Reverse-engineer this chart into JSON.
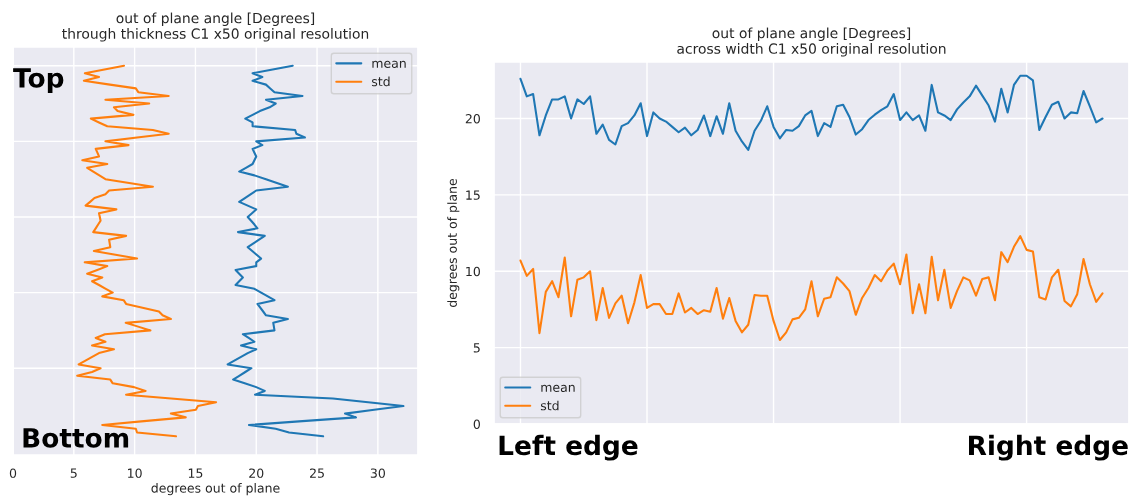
{
  "chart_data": [
    {
      "type": "line",
      "orientation": "horizontal",
      "title": "out of plane angle [Degrees]\nthrough thickness C1 x50 original resolution",
      "xlabel": "degrees out of plane",
      "categories": [
        null,
        null,
        null,
        null,
        null,
        null,
        null,
        null,
        null,
        null,
        null,
        null,
        null,
        null,
        null,
        null,
        null,
        null,
        null,
        null,
        null,
        null,
        null,
        null,
        null,
        null,
        null,
        null,
        null,
        null,
        null,
        null,
        null,
        null,
        null,
        null,
        null,
        null,
        null,
        null,
        null,
        null,
        null,
        null,
        null,
        null,
        null,
        null,
        null,
        null,
        null,
        null,
        null,
        null,
        null,
        null,
        null,
        null,
        null,
        null,
        null,
        null,
        null,
        null,
        null,
        null,
        null,
        null,
        null,
        null,
        null,
        null,
        null,
        null,
        null,
        null,
        null,
        null,
        null,
        null,
        null,
        null,
        null,
        null,
        null,
        null,
        null,
        null,
        null,
        null,
        null,
        null,
        null,
        null,
        null,
        null,
        null,
        null,
        null
      ],
      "xlim": [
        0,
        33.3
      ],
      "xticks": [
        0,
        5,
        10,
        15,
        20,
        25,
        30
      ],
      "tick_labels": "x",
      "grid": true,
      "legend": "top right",
      "annotations": [
        "Top",
        "Bottom"
      ],
      "series": [
        {
          "name": "mean",
          "color": "#1f77b4",
          "values": [
            23.0,
            21.35,
            19.7,
            20.5,
            19.7,
            20.8,
            21.15,
            21.5,
            23.8,
            20.8,
            21.6,
            21.1,
            20.3,
            19.7,
            19.1,
            19.7,
            19.7,
            23.2,
            23.3,
            24.0,
            20.0,
            20.5,
            19.7,
            19.85,
            20.0,
            19.85,
            19.7,
            19.15,
            18.6,
            19.85,
            20.8,
            21.7,
            22.6,
            20.0,
            19.53,
            19.07,
            18.6,
            19.3,
            20.0,
            19.65,
            19.3,
            19.58,
            19.85,
            20.1,
            18.5,
            20.7,
            20.23,
            19.77,
            19.3,
            19.67,
            20.03,
            20.4,
            20.0,
            20.0,
            18.3,
            18.6,
            18.9,
            18.6,
            18.3,
            19.85,
            20.4,
            20.95,
            21.5,
            20.1,
            20.33,
            20.57,
            20.8,
            22.6,
            21.4,
            21.45,
            21.5,
            18.9,
            19.38,
            19.85,
            18.75,
            20.0,
            19.3,
            18.75,
            18.2,
            17.65,
            19.6,
            19.1,
            18.6,
            18.1,
            19.05,
            20.0,
            20.7,
            19.9,
            26.3,
            29.2,
            32.1,
            29.7,
            27.3,
            28.2,
            23.8,
            19.4,
            21.6,
            22.7,
            25.5
          ]
        },
        {
          "name": "std",
          "color": "#ff7f0e",
          "values": [
            9.13,
            7.52,
            5.91,
            7.07,
            5.83,
            7.97,
            10.1,
            10.3,
            12.8,
            7.6,
            11.2,
            8.3,
            8.6,
            9.9,
            6.4,
            7.07,
            7.75,
            11.5,
            12.8,
            10.2,
            7.6,
            9.5,
            6.8,
            6.94,
            7.07,
            5.7,
            7.75,
            6.1,
            6.6,
            7.1,
            7.6,
            9.55,
            11.5,
            7.9,
            7.6,
            6.7,
            6.34,
            5.97,
            8.5,
            7.07,
            7.14,
            7.2,
            7.0,
            6.8,
            6.6,
            9.3,
            7.9,
            7.95,
            8.0,
            6.65,
            8.43,
            10.2,
            5.9,
            7.75,
            6.93,
            6.1,
            7.34,
            6.5,
            7.07,
            7.63,
            8.2,
            7.34,
            9.1,
            9.3,
            10.65,
            12.0,
            12.3,
            12.98,
            9.27,
            10.29,
            11.3,
            7.56,
            6.8,
            7.6,
            6.5,
            8.3,
            7.07,
            6.51,
            5.96,
            5.4,
            7.2,
            6.5,
            5.28,
            8.0,
            8.2,
            9.95,
            10.9,
            9.3,
            13.0,
            16.7,
            15.2,
            15.04,
            12.98,
            14.2,
            10.77,
            7.34,
            10.1,
            10.2,
            13.4
          ]
        }
      ]
    },
    {
      "type": "line",
      "title": "out of plane angle [Degrees]\nacross width C1 x50 original resolution",
      "ylabel": "degrees out of plane",
      "categories": [
        null,
        null,
        null,
        null,
        null,
        null,
        null,
        null,
        null,
        null,
        null,
        null,
        null,
        null,
        null,
        null,
        null,
        null,
        null,
        null,
        null,
        null,
        null,
        null,
        null,
        null,
        null,
        null,
        null,
        null,
        null,
        null,
        null,
        null,
        null,
        null,
        null,
        null,
        null,
        null,
        null,
        null,
        null,
        null,
        null,
        null,
        null,
        null,
        null,
        null,
        null,
        null,
        null,
        null,
        null,
        null,
        null,
        null,
        null,
        null,
        null,
        null,
        null,
        null,
        null,
        null,
        null,
        null,
        null,
        null,
        null,
        null,
        null,
        null,
        null,
        null,
        null,
        null,
        null,
        null,
        null,
        null,
        null,
        null,
        null,
        null,
        null,
        null,
        null,
        null,
        null,
        null,
        null
      ],
      "ylim": [
        0,
        23.7
      ],
      "yticks": [
        0,
        5,
        10,
        15,
        20
      ],
      "tick_labels": "y",
      "grid": true,
      "legend": "bottom left",
      "annotations": [
        "Left edge",
        "Right edge"
      ],
      "series": [
        {
          "name": "mean",
          "color": "#1f77b4",
          "values": [
            22.6,
            21.45,
            21.6,
            18.9,
            20.2,
            21.25,
            21.25,
            21.45,
            20.0,
            21.25,
            20.95,
            21.45,
            19.0,
            19.6,
            18.6,
            18.3,
            19.5,
            19.7,
            20.2,
            21.0,
            18.85,
            20.4,
            20.0,
            19.8,
            19.45,
            19.1,
            19.4,
            18.9,
            19.25,
            20.2,
            18.85,
            20.15,
            19.0,
            21.0,
            19.2,
            18.5,
            17.95,
            19.2,
            19.85,
            20.8,
            19.45,
            18.7,
            19.25,
            19.2,
            19.5,
            20.2,
            20.5,
            18.85,
            19.7,
            19.45,
            20.8,
            20.9,
            20.1,
            18.95,
            19.3,
            19.9,
            20.25,
            20.55,
            20.8,
            21.6,
            19.9,
            20.4,
            19.9,
            20.2,
            19.2,
            22.2,
            20.4,
            20.2,
            19.9,
            20.6,
            21.05,
            21.45,
            22.15,
            21.5,
            20.85,
            19.8,
            21.95,
            20.4,
            22.2,
            22.8,
            22.8,
            22.5,
            19.25,
            20.1,
            20.9,
            21.1,
            20.0,
            20.4,
            20.35,
            21.8,
            20.8,
            19.75,
            20.0
          ]
        },
        {
          "name": "std",
          "color": "#ff7f0e",
          "values": [
            10.7,
            9.7,
            10.15,
            5.95,
            8.65,
            9.35,
            8.3,
            10.9,
            7.05,
            9.45,
            9.6,
            10.0,
            6.8,
            8.9,
            6.95,
            7.9,
            8.4,
            6.6,
            7.95,
            9.75,
            7.6,
            7.85,
            7.85,
            7.2,
            7.2,
            8.55,
            7.3,
            7.6,
            7.2,
            7.45,
            7.35,
            8.9,
            6.9,
            8.25,
            6.75,
            6.0,
            6.5,
            8.45,
            8.4,
            8.4,
            6.75,
            5.5,
            6.0,
            6.85,
            6.95,
            7.5,
            9.35,
            7.05,
            8.2,
            8.3,
            9.6,
            9.2,
            8.7,
            7.15,
            8.25,
            8.9,
            9.75,
            9.35,
            10.05,
            10.5,
            9.15,
            11.1,
            7.25,
            9.15,
            7.25,
            10.95,
            8.1,
            10.1,
            7.6,
            8.7,
            9.6,
            9.4,
            8.4,
            9.5,
            9.6,
            8.1,
            11.25,
            10.6,
            11.6,
            12.3,
            11.4,
            11.3,
            8.3,
            8.15,
            9.6,
            10.1,
            8.05,
            7.7,
            8.5,
            10.8,
            9.15,
            8.0,
            8.55
          ]
        }
      ]
    }
  ]
}
